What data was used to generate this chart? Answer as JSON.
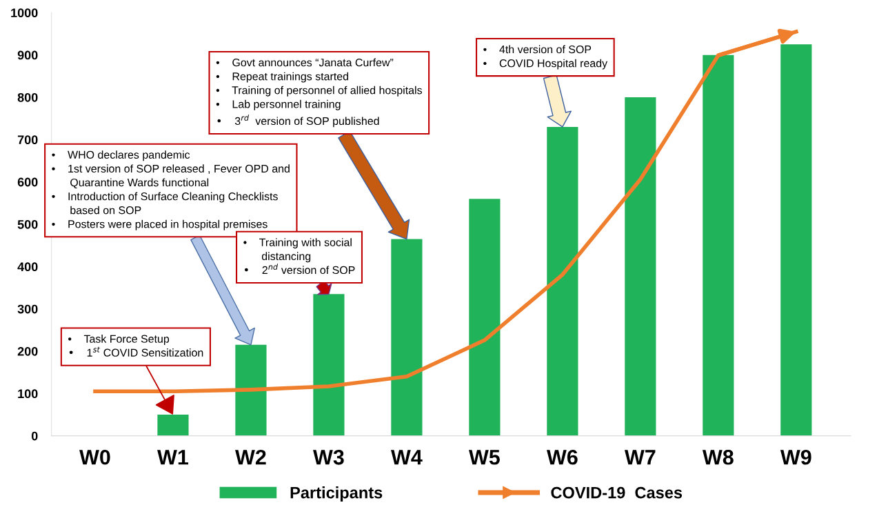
{
  "chart_data": {
    "type": "bar",
    "categories": [
      "W0",
      "W1",
      "W2",
      "W3",
      "W4",
      "W5",
      "W6",
      "W7",
      "W8",
      "W9"
    ],
    "series": [
      {
        "name": "Participants",
        "color": "#21b35a",
        "values": [
          null,
          50,
          215,
          335,
          465,
          560,
          730,
          800,
          900,
          925
        ]
      },
      {
        "name": "COVID-19  Cases",
        "type": "line",
        "color": "#ef7f2d",
        "values": [
          105,
          105,
          109,
          117,
          140,
          226,
          381,
          606,
          899,
          955
        ]
      }
    ],
    "ylim": [
      0,
      1000
    ],
    "yticks": [
      0,
      100,
      200,
      300,
      400,
      500,
      600,
      700,
      800,
      900,
      1000
    ],
    "grid": false,
    "legend": "bottom",
    "marker": "none",
    "line_style": "solid",
    "annotations": [
      {
        "text": "•    Task Force Setup\n•    1$^{st}$ COVID Sensitization",
        "x": "W1",
        "y": 50
      },
      "•    WHO declares pandemic\n•    1st version of SOP released , Fever OPD and\n      Quarantine Wards functional\n•    Introduction of Surface Cleaning Checklists\n      based on SOP\n•    Posters were placed in hospital premises",
      {
        "text": "•    Training with social\n      distancing\n•    2$^{nd}$ version of SOP",
        "x": "W3",
        "y": 335
      },
      "•    Govt announces “Janata Curfew”\n•    Repeat trainings started\n•    Training of personnel of allied hospitals\n•    Lab personnel training\n•    3$^{rd}$  version of SOP published",
      "•    4th version of SOP\n•    COVID Hospital ready"
    ]
  }
}
